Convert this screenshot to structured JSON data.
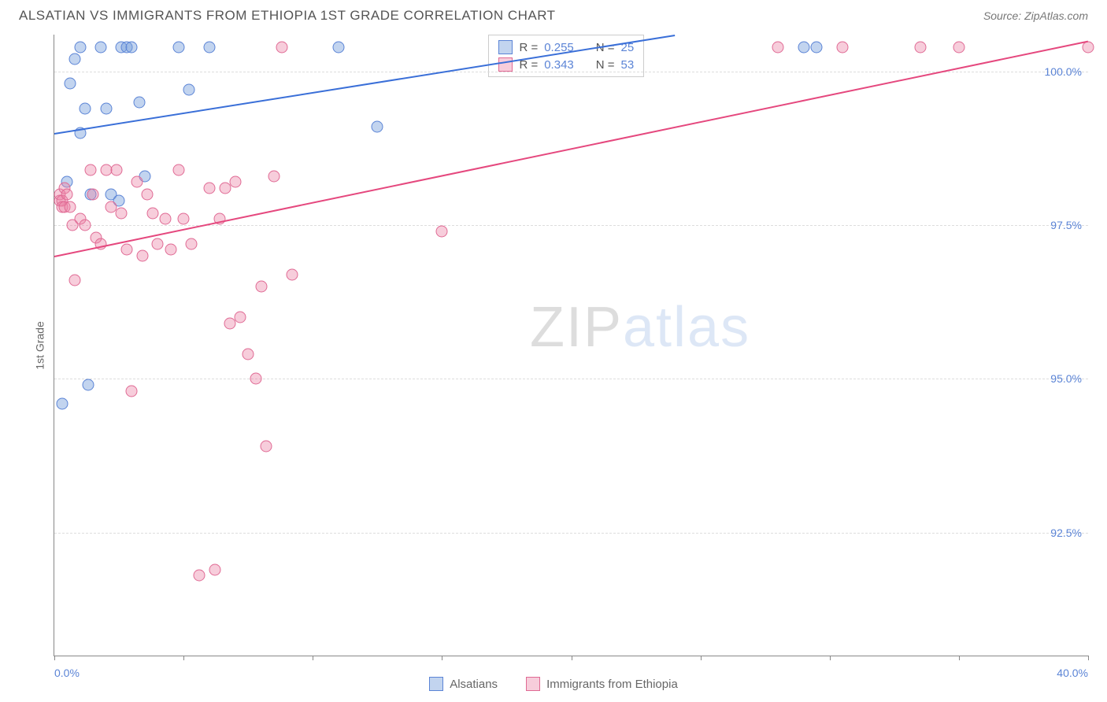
{
  "title": "ALSATIAN VS IMMIGRANTS FROM ETHIOPIA 1ST GRADE CORRELATION CHART",
  "source_label": "Source:",
  "source_value": "ZipAtlas.com",
  "ylabel": "1st Grade",
  "chart": {
    "type": "scatter",
    "xlim": [
      0,
      40
    ],
    "ylim": [
      90.5,
      100.6
    ],
    "x_axis_labels": {
      "min": "0.0%",
      "max": "40.0%"
    },
    "y_ticks": [
      92.5,
      95.0,
      97.5,
      100.0
    ],
    "y_tick_labels": [
      "92.5%",
      "95.0%",
      "97.5%",
      "100.0%"
    ],
    "x_tick_positions": [
      0,
      5,
      10,
      15,
      20,
      25,
      30,
      35,
      40
    ],
    "background_color": "#ffffff",
    "grid_color": "#dddddd",
    "axis_color": "#888888",
    "tick_label_color": "#5b84d6",
    "series": [
      {
        "name": "Alsatians",
        "fill": "rgba(120,160,220,0.45)",
        "stroke": "#5b84d6",
        "line_color": "#3a6fd8",
        "regression": {
          "x1": 0,
          "y1": 99.0,
          "x2": 24,
          "y2": 100.6
        },
        "r": "0.255",
        "n": "25",
        "points": [
          [
            0.3,
            94.6
          ],
          [
            0.5,
            98.2
          ],
          [
            0.6,
            99.8
          ],
          [
            0.8,
            100.2
          ],
          [
            1.0,
            99.0
          ],
          [
            1.0,
            100.4
          ],
          [
            1.2,
            99.4
          ],
          [
            1.3,
            94.9
          ],
          [
            1.4,
            98.0
          ],
          [
            1.8,
            100.4
          ],
          [
            2.0,
            99.4
          ],
          [
            2.2,
            98.0
          ],
          [
            2.5,
            97.9
          ],
          [
            2.6,
            100.4
          ],
          [
            2.8,
            100.4
          ],
          [
            3.0,
            100.4
          ],
          [
            3.3,
            99.5
          ],
          [
            3.5,
            98.3
          ],
          [
            4.8,
            100.4
          ],
          [
            5.2,
            99.7
          ],
          [
            6.0,
            100.4
          ],
          [
            11.0,
            100.4
          ],
          [
            12.5,
            99.1
          ],
          [
            29.0,
            100.4
          ],
          [
            29.5,
            100.4
          ]
        ]
      },
      {
        "name": "Immigrants from Ethiopia",
        "fill": "rgba(235,130,165,0.40)",
        "stroke": "#e06a94",
        "line_color": "#e5487e",
        "regression": {
          "x1": 0,
          "y1": 97.0,
          "x2": 40,
          "y2": 100.5
        },
        "r": "0.343",
        "n": "53",
        "points": [
          [
            0.2,
            97.9
          ],
          [
            0.2,
            98.0
          ],
          [
            0.3,
            97.9
          ],
          [
            0.3,
            97.8
          ],
          [
            0.4,
            98.1
          ],
          [
            0.4,
            97.8
          ],
          [
            0.5,
            98.0
          ],
          [
            0.6,
            97.8
          ],
          [
            0.7,
            97.5
          ],
          [
            0.8,
            96.6
          ],
          [
            1.0,
            97.6
          ],
          [
            1.2,
            97.5
          ],
          [
            1.4,
            98.4
          ],
          [
            1.5,
            98.0
          ],
          [
            1.6,
            97.3
          ],
          [
            1.8,
            97.2
          ],
          [
            2.0,
            98.4
          ],
          [
            2.2,
            97.8
          ],
          [
            2.4,
            98.4
          ],
          [
            2.6,
            97.7
          ],
          [
            2.8,
            97.1
          ],
          [
            3.0,
            94.8
          ],
          [
            3.2,
            98.2
          ],
          [
            3.4,
            97.0
          ],
          [
            3.6,
            98.0
          ],
          [
            3.8,
            97.7
          ],
          [
            4.0,
            97.2
          ],
          [
            4.3,
            97.6
          ],
          [
            4.5,
            97.1
          ],
          [
            4.8,
            98.4
          ],
          [
            5.0,
            97.6
          ],
          [
            5.3,
            97.2
          ],
          [
            5.6,
            91.8
          ],
          [
            6.0,
            98.1
          ],
          [
            6.2,
            91.9
          ],
          [
            6.4,
            97.6
          ],
          [
            6.6,
            98.1
          ],
          [
            6.8,
            95.9
          ],
          [
            7.0,
            98.2
          ],
          [
            7.2,
            96.0
          ],
          [
            7.5,
            95.4
          ],
          [
            7.8,
            95.0
          ],
          [
            8.0,
            96.5
          ],
          [
            8.2,
            93.9
          ],
          [
            8.5,
            98.3
          ],
          [
            8.8,
            100.4
          ],
          [
            9.2,
            96.7
          ],
          [
            15.0,
            97.4
          ],
          [
            28.0,
            100.4
          ],
          [
            30.5,
            100.4
          ],
          [
            33.5,
            100.4
          ],
          [
            35.0,
            100.4
          ],
          [
            40.0,
            100.4
          ]
        ]
      }
    ]
  },
  "legend_top": {
    "rows": [
      {
        "swatch_fill": "rgba(120,160,220,0.45)",
        "swatch_stroke": "#5b84d6",
        "r_label": "R =",
        "r": "0.255",
        "n_label": "N =",
        "n": "25"
      },
      {
        "swatch_fill": "rgba(235,130,165,0.40)",
        "swatch_stroke": "#e06a94",
        "r_label": "R =",
        "r": "0.343",
        "n_label": "N =",
        "n": "53"
      }
    ]
  },
  "legend_bottom": {
    "items": [
      {
        "swatch_fill": "rgba(120,160,220,0.45)",
        "swatch_stroke": "#5b84d6",
        "label": "Alsatians"
      },
      {
        "swatch_fill": "rgba(235,130,165,0.40)",
        "swatch_stroke": "#e06a94",
        "label": "Immigrants from Ethiopia"
      }
    ]
  },
  "watermark": {
    "part1": "ZIP",
    "part2": "atlas"
  }
}
